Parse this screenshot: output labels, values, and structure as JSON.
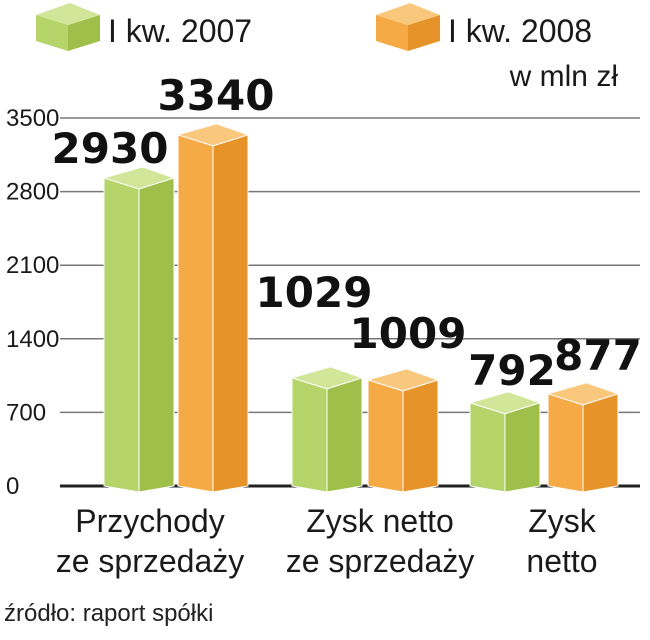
{
  "chart_data": {
    "type": "bar",
    "categories": [
      "Przychody ze sprzedaży",
      "Zysk netto ze sprzedaży",
      "Zysk netto"
    ],
    "category_lines": [
      [
        "Przychody",
        "ze sprzedaży"
      ],
      [
        "Zysk netto",
        "ze sprzedaży"
      ],
      [
        "Zysk",
        "netto"
      ]
    ],
    "series": [
      {
        "name": "I kw. 2007",
        "values": [
          2930,
          1029,
          792
        ],
        "labels": [
          "2930",
          "1029",
          "792"
        ]
      },
      {
        "name": "I kw. 2008",
        "values": [
          3340,
          1009,
          877
        ],
        "labels": [
          "3340",
          "1009",
          "877"
        ]
      }
    ],
    "unit": "w mln zł",
    "yticks": [
      0,
      700,
      1400,
      2100,
      2800,
      3500
    ],
    "ylim": [
      0,
      3500
    ],
    "grid": true,
    "legend_position": "top",
    "colors": {
      "s2007_front": "#b5d46a",
      "s2007_side": "#9ec04a",
      "s2007_top": "#d2e69a",
      "s2008_front": "#f5aa45",
      "s2008_side": "#e6942a",
      "s2008_top": "#f9c87c"
    }
  },
  "source": "źródło: raport spółki"
}
